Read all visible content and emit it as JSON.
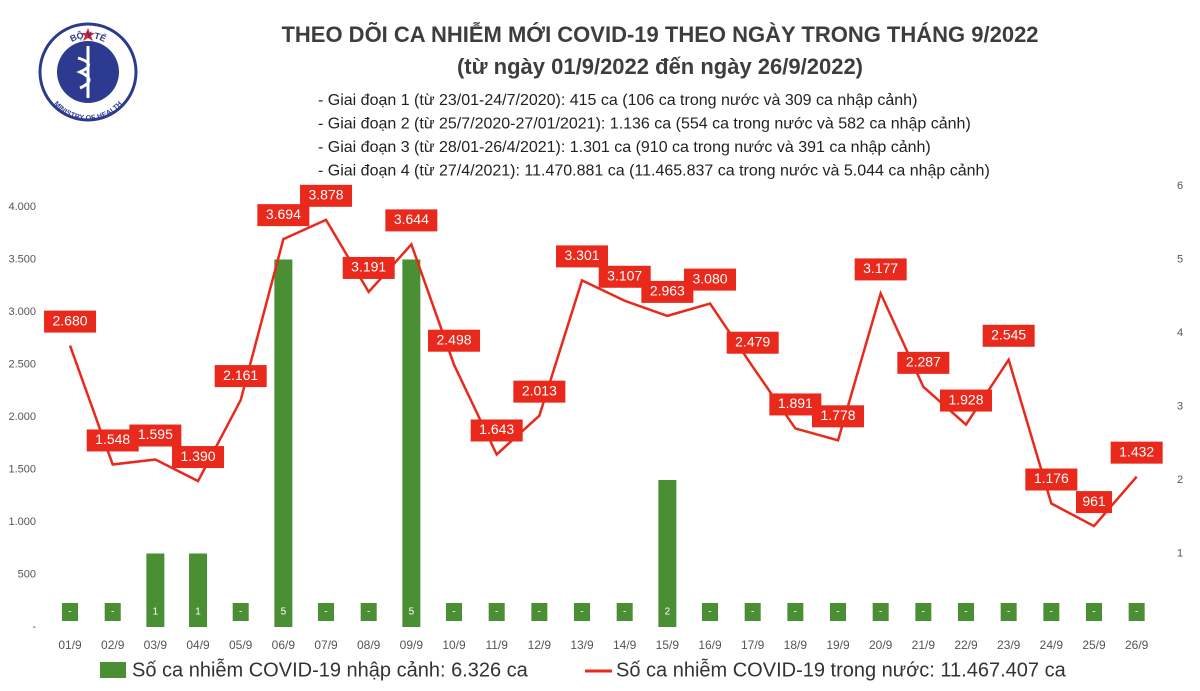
{
  "logo": {
    "top": "BỘ Y TẾ",
    "bottom": "MINISTRY OF HEALTH"
  },
  "chart_data": {
    "type": "bar-line",
    "title": "THEO DÕI CA NHIỄM MỚI COVID-19 THEO NGÀY TRONG THÁNG 9/2022",
    "subtitle": "(từ ngày 01/9/2022 đến ngày 26/9/2022)",
    "annotations": [
      "- Giai đoạn 1 (từ 23/01-24/7/2020): 415 ca (106 ca trong nước và 309 ca nhập cảnh)",
      "- Giai đoạn 2 (từ 25/7/2020-27/01/2021): 1.136 ca (554 ca trong nước và 582 ca nhập cảnh)",
      "- Giai đoạn 3 (từ 28/01-26/4/2021): 1.301 ca (910 ca trong nước và 391 ca nhập cảnh)",
      "- Giai đoạn 4 (từ 27/4/2021): 11.470.881 ca (11.465.837 ca trong nước và 5.044 ca nhập cảnh)"
    ],
    "categories": [
      "01/9",
      "02/9",
      "03/9",
      "04/9",
      "05/9",
      "06/9",
      "07/9",
      "08/9",
      "09/9",
      "10/9",
      "11/9",
      "12/9",
      "13/9",
      "14/9",
      "15/9",
      "16/9",
      "17/9",
      "18/9",
      "19/9",
      "20/9",
      "21/9",
      "22/9",
      "23/9",
      "24/9",
      "25/9",
      "26/9"
    ],
    "series": [
      {
        "name": "Số ca nhiễm COVID-19 nhập cảnh: 6.326 ca",
        "type": "bar",
        "axis": "y2",
        "color": "#4a8f34",
        "values": [
          0,
          0,
          1,
          1,
          0,
          5,
          0,
          0,
          5,
          0,
          0,
          0,
          0,
          0,
          2,
          0,
          0,
          0,
          0,
          0,
          0,
          0,
          0,
          0,
          0,
          0
        ],
        "value_labels": [
          "-",
          "-",
          "1",
          "1",
          "-",
          "5",
          "-",
          "-",
          "5",
          "-",
          "-",
          "-",
          "-",
          "-",
          "2",
          "-",
          "-",
          "-",
          "-",
          "-",
          "-",
          "-",
          "-",
          "-",
          "-",
          "-"
        ]
      },
      {
        "name": "Số ca nhiễm COVID-19 trong nước: 11.467.407 ca",
        "type": "line",
        "color": "#e8291c",
        "values": [
          2680,
          1548,
          1595,
          1390,
          2161,
          3694,
          3878,
          3191,
          3644,
          2498,
          1643,
          2013,
          3301,
          3107,
          2963,
          3080,
          2479,
          1891,
          1778,
          3177,
          2287,
          1928,
          2545,
          1176,
          961,
          1432
        ],
        "value_labels": [
          "2.680",
          "1.548",
          "1.595",
          "1.390",
          "2.161",
          "3.694",
          "3.878",
          "3.191",
          "3.644",
          "2.498",
          "1.643",
          "2.013",
          "3.301",
          "3.107",
          "2.963",
          "3.080",
          "2.479",
          "1.891",
          "1.778",
          "3.177",
          "2.287",
          "1.928",
          "2.545",
          "1.176",
          "961",
          "1.432"
        ]
      }
    ],
    "ylim": [
      0,
      4200
    ],
    "yticks": [
      {
        "value": 0,
        "label": "-"
      },
      500,
      {
        "value": 1000,
        "label": "1.000"
      },
      {
        "value": 1500,
        "label": "1.500"
      },
      {
        "value": 2000,
        "label": "2.000"
      },
      {
        "value": 2500,
        "label": "2.500"
      },
      {
        "value": 3000,
        "label": "3.000"
      },
      {
        "value": 3500,
        "label": "3.500"
      },
      {
        "value": 4000,
        "label": "4.000"
      }
    ],
    "y2lim": [
      0,
      6
    ],
    "y2ticks": [
      1,
      2,
      3,
      4,
      5,
      6
    ],
    "grid": false
  }
}
